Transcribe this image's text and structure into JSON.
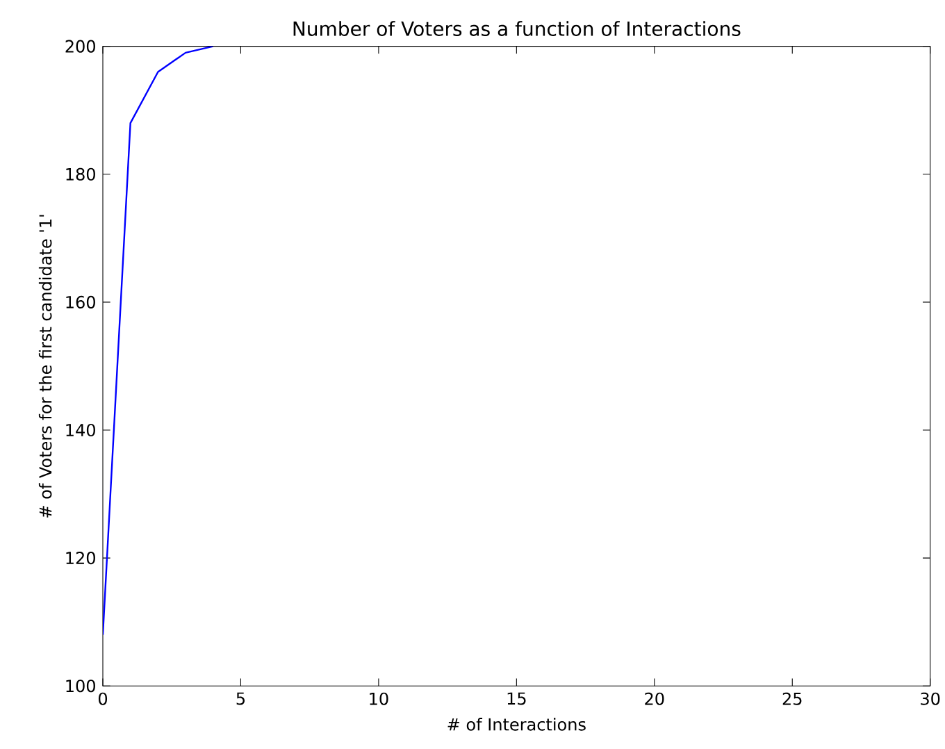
{
  "chart_data": {
    "type": "line",
    "title": "Number of Voters as a function of Interactions",
    "xlabel": "# of Interactions",
    "ylabel": "# of Voters for the first candidate '1'",
    "x": [
      0,
      1,
      2,
      3,
      4
    ],
    "series": [
      {
        "color": "#0000ff",
        "values": [
          108,
          188,
          196,
          199,
          200
        ]
      }
    ],
    "xlim": [
      0,
      30
    ],
    "ylim": [
      100,
      200
    ],
    "xticks": [
      0,
      5,
      10,
      15,
      20,
      25,
      30
    ],
    "yticks": [
      100,
      120,
      140,
      160,
      180,
      200
    ],
    "grid": false,
    "marker": "none",
    "line_style": "solid"
  }
}
